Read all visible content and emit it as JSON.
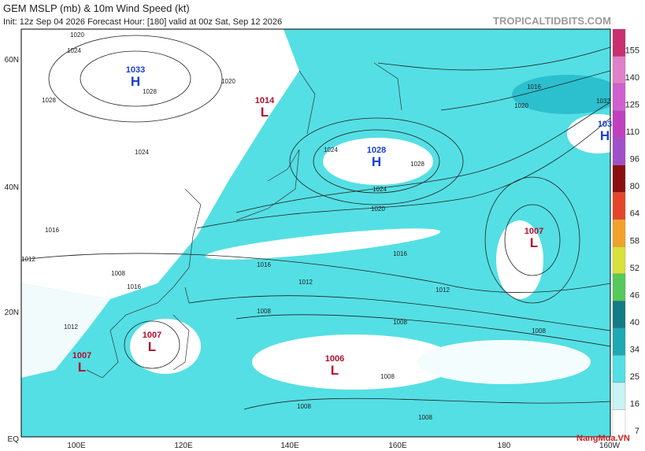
{
  "header": {
    "title": "GEM MSLP (mb) & 10m Wind Speed (kt)",
    "subtitle": "Init: 12z Sep 04 2026   Forecast Hour: [180]   valid at 00z Sat, Sep 12 2026",
    "site": "TROPICALTIDBITS.COM"
  },
  "lat_labels": [
    "60N",
    "40N",
    "20N",
    "EQ"
  ],
  "lon_labels": [
    "100E",
    "120E",
    "140E",
    "160E",
    "180",
    "160W"
  ],
  "colorbar": {
    "labels": [
      "7",
      "16",
      "25",
      "34",
      "40",
      "46",
      "52",
      "58",
      "64",
      "80",
      "96",
      "110",
      "125",
      "140",
      "155"
    ]
  },
  "centers": [
    {
      "letter": "H",
      "pressure": "1033"
    },
    {
      "letter": "L",
      "pressure": "1014"
    },
    {
      "letter": "H",
      "pressure": "1028"
    },
    {
      "letter": "L",
      "pressure": "1007"
    },
    {
      "letter": "H",
      "pressure": "103"
    },
    {
      "letter": "L",
      "pressure": "1007"
    },
    {
      "letter": "L",
      "pressure": "1007"
    },
    {
      "letter": "L",
      "pressure": "1006"
    }
  ],
  "isobar_labels": [
    "1020",
    "1024",
    "1028",
    "1024",
    "1028",
    "1016",
    "1012",
    "1008",
    "1012",
    "1016",
    "1020",
    "1024",
    "1028",
    "1024",
    "1020",
    "1016",
    "1012",
    "1016",
    "1012",
    "1008",
    "1008",
    "1008",
    "1008",
    "1008",
    "1008",
    "1016",
    "1020",
    "1032"
  ],
  "watermark": "NangMua.VN"
}
